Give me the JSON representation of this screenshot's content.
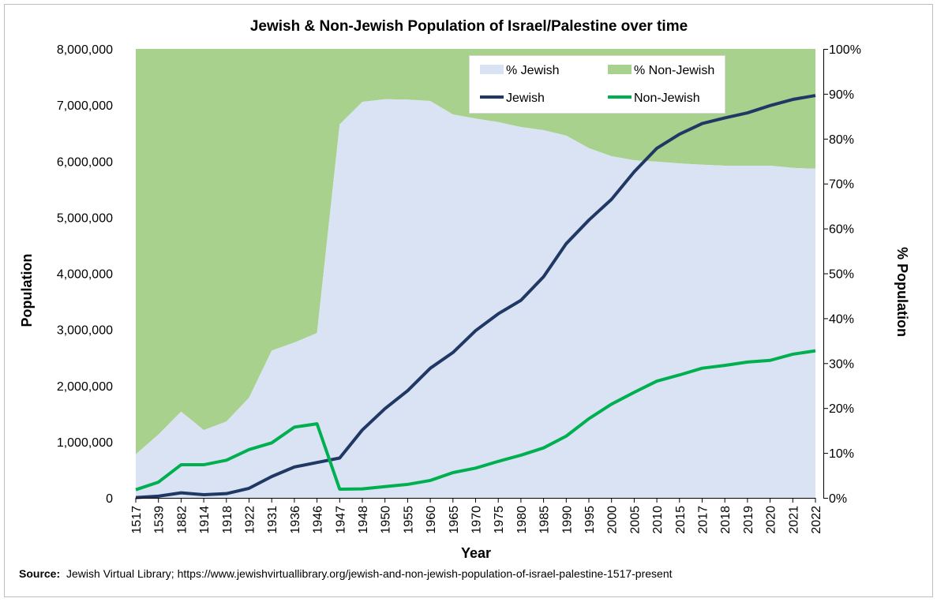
{
  "chart_data": {
    "type": "area+line",
    "title": "Jewish & Non-Jewish Population of Israel/Palestine over time",
    "xlabel": "Year",
    "ylabel": "Population",
    "y2label": "% Population",
    "ylim": [
      0,
      8000000
    ],
    "y2lim": [
      0,
      100
    ],
    "yticks": [
      "0",
      "1,000,000",
      "2,000,000",
      "3,000,000",
      "4,000,000",
      "5,000,000",
      "6,000,000",
      "7,000,000",
      "8,000,000"
    ],
    "y2ticks": [
      "0%",
      "10%",
      "20%",
      "30%",
      "40%",
      "50%",
      "60%",
      "70%",
      "80%",
      "90%",
      "100%"
    ],
    "grid": false,
    "legend_position": "top-right-inside",
    "categories": [
      "1517",
      "1539",
      "1882",
      "1914",
      "1918",
      "1922",
      "1931",
      "1936",
      "1946",
      "1947",
      "1948",
      "1950",
      "1955",
      "1960",
      "1965",
      "1970",
      "1975",
      "1980",
      "1985",
      "1990",
      "1995",
      "2000",
      "2005",
      "2010",
      "2015",
      "2017",
      "2018",
      "2019",
      "2020",
      "2021",
      "2022"
    ],
    "series": [
      {
        "name": "% Jewish",
        "kind": "stacked-area",
        "axis": "right",
        "color": "#dae3f3",
        "values": [
          9.7,
          14.1,
          19.2,
          15.1,
          17.0,
          22.3,
          32.8,
          34.6,
          36.7,
          83.2,
          88.2,
          88.8,
          88.7,
          88.4,
          85.4,
          84.5,
          83.7,
          82.6,
          81.9,
          80.7,
          77.9,
          76.1,
          75.2,
          74.9,
          74.5,
          74.2,
          74.0,
          74.0,
          74.0,
          73.5,
          73.3
        ]
      },
      {
        "name": "% Non-Jewish",
        "kind": "stacked-area",
        "axis": "right",
        "color": "#a9d18e",
        "values": [
          90.3,
          85.9,
          80.8,
          84.9,
          83.0,
          77.7,
          67.2,
          65.4,
          63.3,
          16.8,
          11.8,
          11.2,
          11.3,
          11.6,
          14.6,
          15.5,
          16.3,
          17.4,
          18.1,
          19.3,
          22.1,
          23.9,
          24.8,
          25.1,
          25.5,
          25.8,
          26.0,
          26.0,
          26.0,
          26.5,
          26.7
        ]
      },
      {
        "name": "Jewish",
        "kind": "line",
        "axis": "left",
        "color": "#203864",
        "values": [
          5000,
          30000,
          90000,
          56000,
          75000,
          170000,
          380000,
          550000,
          630000,
          710000,
          1210000,
          1590000,
          1910000,
          2310000,
          2590000,
          2980000,
          3280000,
          3520000,
          3940000,
          4530000,
          4950000,
          5320000,
          5810000,
          6230000,
          6480000,
          6670000,
          6770000,
          6860000,
          6990000,
          7100000,
          7170000
        ]
      },
      {
        "name": "Non-Jewish",
        "kind": "line",
        "axis": "left",
        "color": "#00b050",
        "values": [
          145000,
          280000,
          590000,
          590000,
          670000,
          860000,
          980000,
          1260000,
          1320000,
          155000,
          160000,
          200000,
          240000,
          310000,
          450000,
          530000,
          650000,
          760000,
          890000,
          1100000,
          1410000,
          1670000,
          1880000,
          2080000,
          2190000,
          2310000,
          2360000,
          2420000,
          2450000,
          2560000,
          2620000
        ]
      }
    ],
    "source_label": "Source:",
    "source_text": "Jewish Virtual Library; https://www.jewishvirtuallibrary.org/jewish-and-non-jewish-population-of-israel-palestine-1517-present"
  }
}
